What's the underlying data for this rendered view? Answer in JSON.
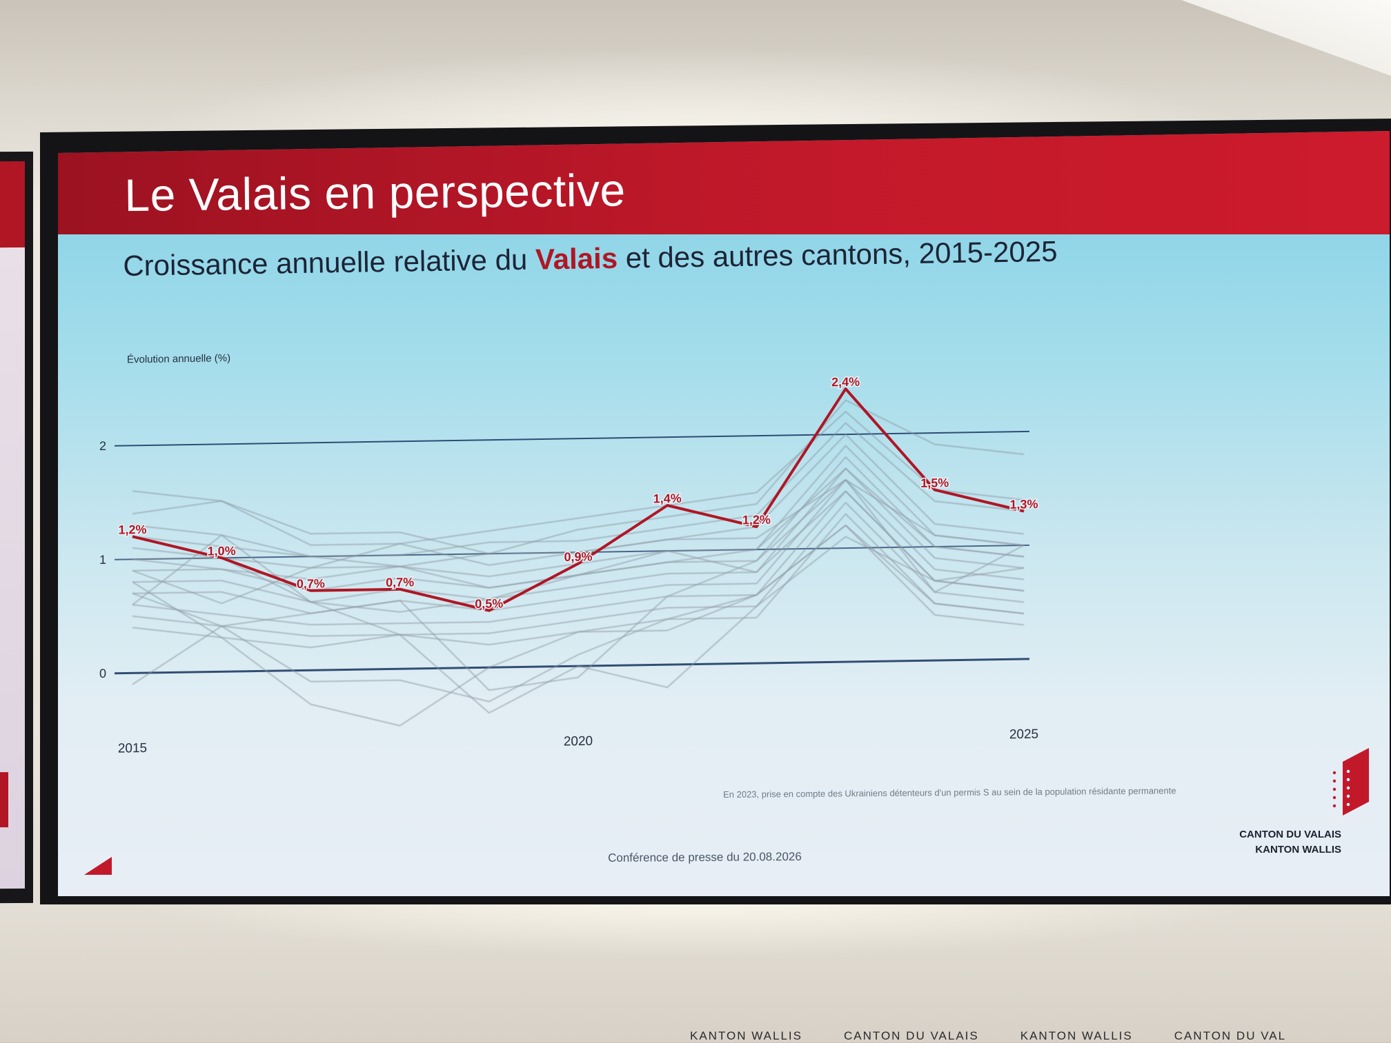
{
  "slide": {
    "title": "Le Valais en perspective",
    "subtitle_before": "Croissance annuelle relative du ",
    "subtitle_highlight": "Valais",
    "subtitle_after": " et des autres cantons, 2015-2025",
    "footnote": "En 2023, prise en compte des Ukrainiens détenteurs d'un permis S au sein de la population résidante permanente",
    "press_line": "Conférence de presse du 20.08.2026",
    "logo_line1": "CANTON DU VALAIS",
    "logo_line2": "KANTON WALLIS"
  },
  "bottom_tickers": [
    "KANTON WALLIS",
    "CANTON DU VALAIS",
    "KANTON WALLIS",
    "CANTON DU VAL"
  ],
  "colors": {
    "banner": "#c2192a",
    "valais_line": "#b01624",
    "reference_lines": "#1f3c66",
    "other_cantons": "#8a969f"
  },
  "chart_data": {
    "type": "line",
    "title": "Croissance annuelle relative du Valais et des autres cantons, 2015-2025",
    "ylabel": "Évolution annuelle (%)",
    "ylim": [
      -0.6,
      2.6
    ],
    "yticks": [
      "0",
      "1",
      "2"
    ],
    "xticks": [
      {
        "x": 2015,
        "label": "2015"
      },
      {
        "x": 2020,
        "label": "2020"
      },
      {
        "x": 2025,
        "label": "2025"
      }
    ],
    "x": [
      2015,
      2016,
      2017,
      2018,
      2019,
      2020,
      2021,
      2022,
      2023,
      2024,
      2025
    ],
    "reference_lines": [
      0,
      1.0,
      2.0
    ],
    "legend": "none",
    "grid": false,
    "highlight_series": {
      "name": "Valais",
      "values": [
        1.2,
        1.0,
        0.7,
        0.7,
        0.5,
        0.9,
        1.4,
        1.2,
        2.4,
        1.5,
        1.3
      ],
      "labels": [
        "1,2%",
        "1,0%",
        "0,7%",
        "0,7%",
        "0,5%",
        "0,9%",
        "1,4%",
        "1,2%",
        "2,4%",
        "1,5%",
        "1,3%"
      ]
    },
    "other_series": [
      {
        "values": [
          1.6,
          1.5,
          1.2,
          1.2,
          1.0,
          1.2,
          1.3,
          1.4,
          2.3,
          1.9,
          1.8
        ]
      },
      {
        "values": [
          1.4,
          1.5,
          1.1,
          1.1,
          1.2,
          1.3,
          1.4,
          1.5,
          2.2,
          1.5,
          1.4
        ]
      },
      {
        "values": [
          1.3,
          1.2,
          1.0,
          1.0,
          1.1,
          1.1,
          1.2,
          1.3,
          2.1,
          1.4,
          1.3
        ]
      },
      {
        "values": [
          1.1,
          1.0,
          0.9,
          1.1,
          0.9,
          1.0,
          1.1,
          1.2,
          2.0,
          1.2,
          1.1
        ]
      },
      {
        "values": [
          1.0,
          0.9,
          0.8,
          0.9,
          0.8,
          0.9,
          1.0,
          1.0,
          1.9,
          1.1,
          1.0
        ]
      },
      {
        "values": [
          0.9,
          0.9,
          0.7,
          0.8,
          0.7,
          0.8,
          0.9,
          0.9,
          1.8,
          1.0,
          0.9
        ]
      },
      {
        "values": [
          0.8,
          0.8,
          0.6,
          0.7,
          0.6,
          0.7,
          0.8,
          0.8,
          1.7,
          0.9,
          0.8
        ]
      },
      {
        "values": [
          0.7,
          0.7,
          0.5,
          0.6,
          0.5,
          0.6,
          0.7,
          0.7,
          1.6,
          0.8,
          0.7
        ]
      },
      {
        "values": [
          0.6,
          0.5,
          0.4,
          0.4,
          0.4,
          0.5,
          0.6,
          0.6,
          1.5,
          0.7,
          0.6
        ]
      },
      {
        "values": [
          0.5,
          0.4,
          0.3,
          0.3,
          0.3,
          0.4,
          0.5,
          0.5,
          1.4,
          0.6,
          0.5
        ]
      },
      {
        "values": [
          0.4,
          0.3,
          0.2,
          0.3,
          0.2,
          0.3,
          0.4,
          0.4,
          1.3,
          0.5,
          0.4
        ]
      },
      {
        "values": [
          0.7,
          0.4,
          -0.1,
          -0.1,
          -0.3,
          0.1,
          0.4,
          0.6,
          1.2,
          0.5,
          0.4
        ]
      },
      {
        "values": [
          0.8,
          0.3,
          -0.3,
          -0.5,
          0.0,
          0.3,
          0.3,
          0.6,
          1.2,
          0.4,
          0.3
        ]
      },
      {
        "values": [
          -0.1,
          0.4,
          0.5,
          0.6,
          -0.2,
          -0.1,
          0.6,
          0.9,
          1.6,
          0.6,
          1.0
        ]
      },
      {
        "values": [
          0.6,
          1.2,
          0.6,
          0.3,
          -0.4,
          0.0,
          -0.2,
          0.5,
          1.1,
          0.7,
          0.8
        ]
      },
      {
        "values": [
          0.9,
          0.6,
          0.9,
          0.9,
          0.7,
          0.8,
          0.9,
          1.0,
          1.7,
          1.0,
          0.9
        ]
      },
      {
        "values": [
          1.2,
          1.1,
          1.0,
          0.9,
          1.0,
          1.0,
          1.1,
          1.1,
          1.6,
          1.1,
          1.0
        ]
      },
      {
        "values": [
          1.0,
          1.0,
          0.6,
          0.5,
          0.6,
          0.8,
          1.0,
          0.8,
          1.5,
          0.7,
          0.6
        ]
      }
    ]
  }
}
